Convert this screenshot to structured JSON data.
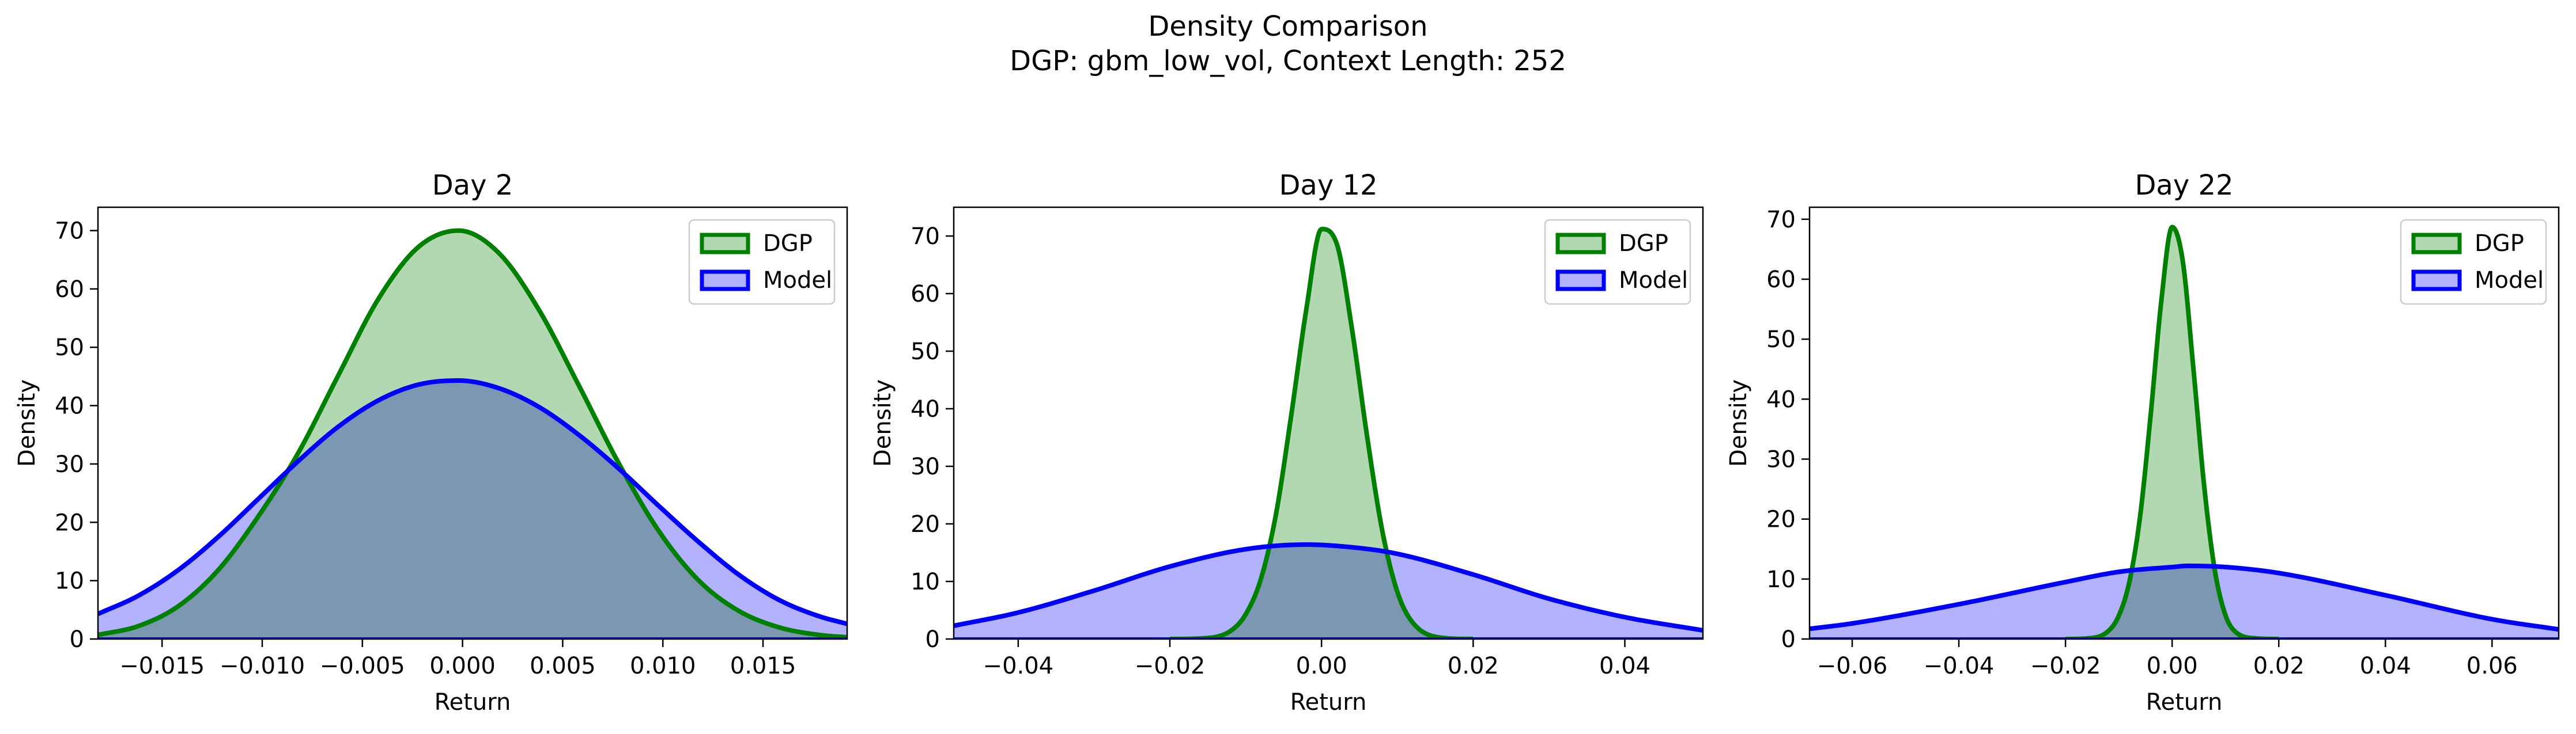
{
  "figure": {
    "title": "Density Comparison",
    "subtitle": "DGP: gbm_low_vol, Context Length: 252"
  },
  "colors": {
    "dgp_line": "#008000",
    "dgp_fill": "#b2d8b2",
    "model_line": "#0000ff",
    "model_fill": "#b2b2ff",
    "overlap_fill": "#7f99c8"
  },
  "chart_data": [
    {
      "type": "area",
      "title": "Day 2",
      "xlabel": "Return",
      "ylabel": "Density",
      "xlim": [
        -0.0182,
        0.0192
      ],
      "ylim": [
        0,
        74
      ],
      "xticks": [
        -0.015,
        -0.01,
        -0.005,
        0.0,
        0.005,
        0.01,
        0.015
      ],
      "xtick_labels": [
        "−0.015",
        "−0.010",
        "−0.005",
        "0.000",
        "0.005",
        "0.010",
        "0.015"
      ],
      "yticks": [
        0,
        10,
        20,
        30,
        40,
        50,
        60,
        70
      ],
      "ytick_labels": [
        "0",
        "10",
        "20",
        "30",
        "40",
        "50",
        "60",
        "70"
      ],
      "legend": {
        "position": "top-right",
        "entries": [
          "DGP",
          "Model"
        ]
      },
      "grid": false,
      "series": [
        {
          "name": "DGP",
          "x": [
            -0.0182,
            -0.0162,
            -0.0142,
            -0.0122,
            -0.0102,
            -0.0082,
            -0.0062,
            -0.0042,
            -0.0022,
            -0.0002,
            0.0018,
            0.0038,
            0.0058,
            0.0078,
            0.0098,
            0.0118,
            0.0138,
            0.0158,
            0.0178,
            0.0192
          ],
          "y": [
            0.7,
            2.2,
            5.6,
            11.8,
            21.0,
            31.9,
            45.2,
            58.3,
            67.2,
            70.0,
            66.2,
            56.5,
            43.5,
            30.1,
            18.5,
            10.0,
            4.8,
            2.0,
            0.7,
            0.3
          ]
        },
        {
          "name": "Model",
          "x": [
            -0.0182,
            -0.0162,
            -0.0142,
            -0.0122,
            -0.0102,
            -0.0082,
            -0.0062,
            -0.0042,
            -0.0022,
            -0.0002,
            0.0018,
            0.0038,
            0.0058,
            0.0078,
            0.0098,
            0.0118,
            0.0138,
            0.0158,
            0.0178,
            0.0192
          ],
          "y": [
            4.3,
            7.4,
            11.8,
            17.5,
            24.0,
            30.5,
            36.4,
            40.9,
            43.6,
            44.3,
            43.0,
            39.8,
            35.0,
            29.2,
            22.8,
            16.6,
            11.0,
            6.7,
            3.9,
            2.6
          ]
        }
      ]
    },
    {
      "type": "area",
      "title": "Day 12",
      "xlabel": "Return",
      "ylabel": "Density",
      "xlim": [
        -0.0485,
        0.0503
      ],
      "ylim": [
        0,
        75
      ],
      "xticks": [
        -0.04,
        -0.02,
        0.0,
        0.02,
        0.04
      ],
      "xtick_labels": [
        "−0.04",
        "−0.02",
        "0.00",
        "0.02",
        "0.04"
      ],
      "yticks": [
        0,
        10,
        20,
        30,
        40,
        50,
        60,
        70
      ],
      "ytick_labels": [
        "0",
        "10",
        "20",
        "30",
        "40",
        "50",
        "60",
        "70"
      ],
      "legend": {
        "position": "top-right",
        "entries": [
          "DGP",
          "Model"
        ]
      },
      "grid": false,
      "series": [
        {
          "name": "DGP",
          "x": [
            -0.02,
            -0.016,
            -0.012,
            -0.01,
            -0.008,
            -0.006,
            -0.004,
            -0.002,
            0.0,
            0.002,
            0.004,
            0.006,
            0.008,
            0.01,
            0.012,
            0.016,
            0.02
          ],
          "y": [
            0.0,
            0.1,
            1.4,
            4.3,
            10.4,
            21.7,
            38.8,
            57.3,
            71.2,
            68.7,
            54.0,
            35.3,
            18.9,
            8.2,
            2.9,
            0.2,
            0.0
          ]
        },
        {
          "name": "Model",
          "x": [
            -0.0485,
            -0.04,
            -0.03,
            -0.02,
            -0.01,
            -0.002,
            0.005,
            0.01,
            0.02,
            0.03,
            0.04,
            0.0503
          ],
          "y": [
            2.3,
            4.6,
            8.4,
            12.6,
            15.6,
            16.4,
            15.8,
            14.8,
            11.2,
            7.0,
            3.8,
            1.5
          ]
        }
      ]
    },
    {
      "type": "area",
      "title": "Day 22",
      "xlabel": "Return",
      "ylabel": "Density",
      "xlim": [
        -0.068,
        0.0725
      ],
      "ylim": [
        0,
        72
      ],
      "xticks": [
        -0.06,
        -0.04,
        -0.02,
        0.0,
        0.02,
        0.04,
        0.06
      ],
      "xtick_labels": [
        "−0.06",
        "−0.04",
        "−0.02",
        "0.00",
        "0.02",
        "0.04",
        "0.06"
      ],
      "yticks": [
        0,
        10,
        20,
        30,
        40,
        50,
        60,
        70
      ],
      "ytick_labels": [
        "0",
        "10",
        "20",
        "30",
        "40",
        "50",
        "60",
        "70"
      ],
      "legend": {
        "position": "top-right",
        "entries": [
          "DGP",
          "Model"
        ]
      },
      "grid": false,
      "series": [
        {
          "name": "DGP",
          "x": [
            -0.02,
            -0.016,
            -0.012,
            -0.01,
            -0.008,
            -0.006,
            -0.004,
            -0.002,
            0.0,
            0.002,
            0.004,
            0.006,
            0.008,
            0.01,
            0.012,
            0.016,
            0.02
          ],
          "y": [
            0.0,
            0.1,
            1.3,
            3.9,
            9.6,
            20.5,
            37.6,
            56.6,
            68.7,
            63.0,
            45.0,
            25.6,
            11.5,
            4.0,
            1.1,
            0.1,
            0.0
          ]
        },
        {
          "name": "Model",
          "x": [
            -0.068,
            -0.06,
            -0.04,
            -0.02,
            -0.01,
            0.0,
            0.003,
            0.01,
            0.02,
            0.04,
            0.06,
            0.0725
          ],
          "y": [
            1.7,
            2.6,
            5.8,
            9.5,
            11.2,
            12.0,
            12.2,
            12.0,
            11.0,
            7.3,
            3.3,
            1.6
          ]
        }
      ]
    }
  ]
}
